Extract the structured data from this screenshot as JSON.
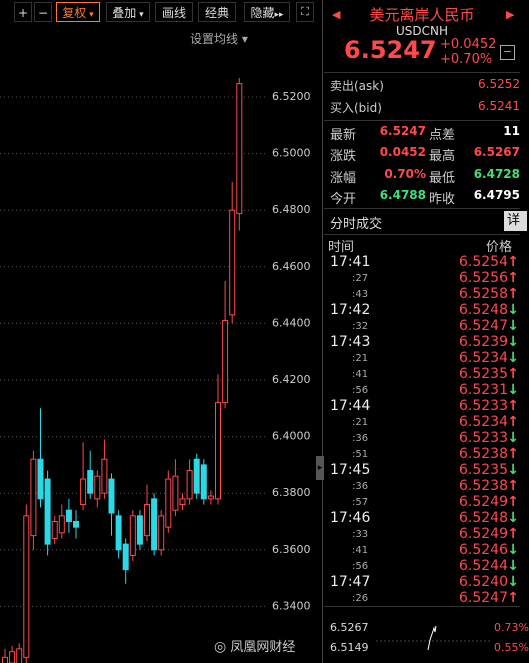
{
  "toolbar": {
    "buttons": [
      "+",
      "−",
      "复权",
      "叠加",
      "画线",
      "经典",
      "隐藏"
    ],
    "active_index": 2
  },
  "ma_setting": "设置均线",
  "chart_data": {
    "type": "candlestick",
    "ylim": [
      6.32,
      6.54
    ],
    "yticks": [
      {
        "value": 6.34,
        "label": "6.3400"
      },
      {
        "value": 6.36,
        "label": "6.3600"
      },
      {
        "value": 6.38,
        "label": "6.3800"
      },
      {
        "value": 6.4,
        "label": "6.4000"
      },
      {
        "value": 6.42,
        "label": "6.4200"
      },
      {
        "value": 6.44,
        "label": "6.4400"
      },
      {
        "value": 6.46,
        "label": "6.4600"
      },
      {
        "value": 6.48,
        "label": "6.4800"
      },
      {
        "value": 6.5,
        "label": "6.5000"
      },
      {
        "value": 6.52,
        "label": "6.5200"
      }
    ],
    "grid": true,
    "up_color": "#ff4a4a",
    "down_color": "#2ad8e6",
    "open": [
      6.318,
      6.32,
      6.318,
      6.322,
      6.365,
      6.392,
      6.385,
      6.364,
      6.366,
      6.374,
      6.37,
      6.376,
      6.388,
      6.378,
      6.38,
      6.385,
      6.372,
      6.362,
      6.358,
      6.372,
      6.365,
      6.378,
      6.36,
      6.368,
      6.374,
      6.376,
      6.378,
      6.392,
      6.39,
      6.378,
      6.378,
      6.412,
      6.443,
      6.4788
    ],
    "high": [
      6.325,
      6.326,
      6.327,
      6.376,
      6.395,
      6.41,
      6.388,
      6.372,
      6.376,
      6.378,
      6.374,
      6.398,
      6.395,
      6.388,
      6.399,
      6.387,
      6.374,
      6.364,
      6.374,
      6.374,
      6.383,
      6.38,
      6.374,
      6.388,
      6.392,
      6.38,
      6.392,
      6.394,
      6.392,
      6.381,
      6.422,
      6.455,
      6.49,
      6.5267
    ],
    "low": [
      6.315,
      6.317,
      6.316,
      6.32,
      6.36,
      6.375,
      6.358,
      6.362,
      6.364,
      6.366,
      6.364,
      6.374,
      6.378,
      6.375,
      6.378,
      6.365,
      6.357,
      6.348,
      6.356,
      6.36,
      6.363,
      6.358,
      6.358,
      6.366,
      6.372,
      6.374,
      6.376,
      6.378,
      6.376,
      6.376,
      6.376,
      6.41,
      6.44,
      6.4728
    ],
    "close": [
      6.322,
      6.324,
      6.325,
      6.372,
      6.392,
      6.378,
      6.362,
      6.37,
      6.372,
      6.37,
      6.368,
      6.385,
      6.38,
      6.386,
      6.392,
      6.373,
      6.36,
      6.353,
      6.372,
      6.362,
      6.376,
      6.36,
      6.372,
      6.385,
      6.386,
      6.378,
      6.388,
      6.38,
      6.378,
      6.379,
      6.412,
      6.441,
      6.48,
      6.5247
    ]
  },
  "quote": {
    "name": "美元离岸人民币",
    "code": "USDCNH",
    "price": "6.5247",
    "change": "+0.0452",
    "change_pct": "+0.70%"
  },
  "ask": {
    "label": "卖出(ask)",
    "value": "6.5252"
  },
  "bid": {
    "label": "买入(bid)",
    "value": "6.5241"
  },
  "stats": [
    {
      "l1": "最新",
      "v1": "6.5247",
      "c1": "#ff4a4a",
      "l2": "点差",
      "v2": "11",
      "c2": "#ffffff"
    },
    {
      "l1": "涨跌",
      "v1": "0.0452",
      "c1": "#ff4a4a",
      "l2": "最高",
      "v2": "6.5267",
      "c2": "#ff4a4a"
    },
    {
      "l1": "涨幅",
      "v1": "0.70%",
      "c1": "#ff4a4a",
      "l2": "最低",
      "v2": "6.4728",
      "c2": "#3ee07a"
    },
    {
      "l1": "今开",
      "v1": "6.4788",
      "c1": "#3ee07a",
      "l2": "昨收",
      "v2": "6.4795",
      "c2": "#ffffff"
    }
  ],
  "trades": {
    "tab": "分时成交",
    "detail": "详",
    "time_header": "时间",
    "price_header": "价格",
    "rows": [
      {
        "time": "17:41",
        "price": "6.5254",
        "arrow": "↑",
        "dir": "up"
      },
      {
        "time": ":27",
        "price": "6.5256",
        "arrow": "↑",
        "dir": "up"
      },
      {
        "time": ":43",
        "price": "6.5258",
        "arrow": "↑",
        "dir": "up"
      },
      {
        "time": "17:42",
        "price": "6.5248",
        "arrow": "↓",
        "dir": "down"
      },
      {
        "time": ":32",
        "price": "6.5247",
        "arrow": "↓",
        "dir": "down"
      },
      {
        "time": "17:43",
        "price": "6.5239",
        "arrow": "↓",
        "dir": "down"
      },
      {
        "time": ":21",
        "price": "6.5234",
        "arrow": "↓",
        "dir": "down"
      },
      {
        "time": ":41",
        "price": "6.5235",
        "arrow": "↑",
        "dir": "up"
      },
      {
        "time": ":56",
        "price": "6.5231",
        "arrow": "↓",
        "dir": "down"
      },
      {
        "time": "17:44",
        "price": "6.5233",
        "arrow": "↑",
        "dir": "up"
      },
      {
        "time": ":21",
        "price": "6.5234",
        "arrow": "↑",
        "dir": "up"
      },
      {
        "time": ":36",
        "price": "6.5233",
        "arrow": "↓",
        "dir": "down"
      },
      {
        "time": ":51",
        "price": "6.5238",
        "arrow": "↑",
        "dir": "up"
      },
      {
        "time": "17:45",
        "price": "6.5235",
        "arrow": "↓",
        "dir": "down"
      },
      {
        "time": ":36",
        "price": "6.5238",
        "arrow": "↑",
        "dir": "up"
      },
      {
        "time": ":57",
        "price": "6.5249",
        "arrow": "↑",
        "dir": "up"
      },
      {
        "time": "17:46",
        "price": "6.5248",
        "arrow": "↓",
        "dir": "down"
      },
      {
        "time": ":33",
        "price": "6.5249",
        "arrow": "↑",
        "dir": "up"
      },
      {
        "time": ":41",
        "price": "6.5246",
        "arrow": "↓",
        "dir": "down"
      },
      {
        "time": ":56",
        "price": "6.5244",
        "arrow": "↓",
        "dir": "down"
      },
      {
        "time": "17:47",
        "price": "6.5240",
        "arrow": "↓",
        "dir": "down"
      },
      {
        "time": ":26",
        "price": "6.5247",
        "arrow": "↑",
        "dir": "up"
      }
    ]
  },
  "mini": {
    "high": "6.5267",
    "low": "6.5149",
    "high_pct": "0.73%",
    "low_pct": "0.55%"
  },
  "watermark": "凤凰网财经"
}
